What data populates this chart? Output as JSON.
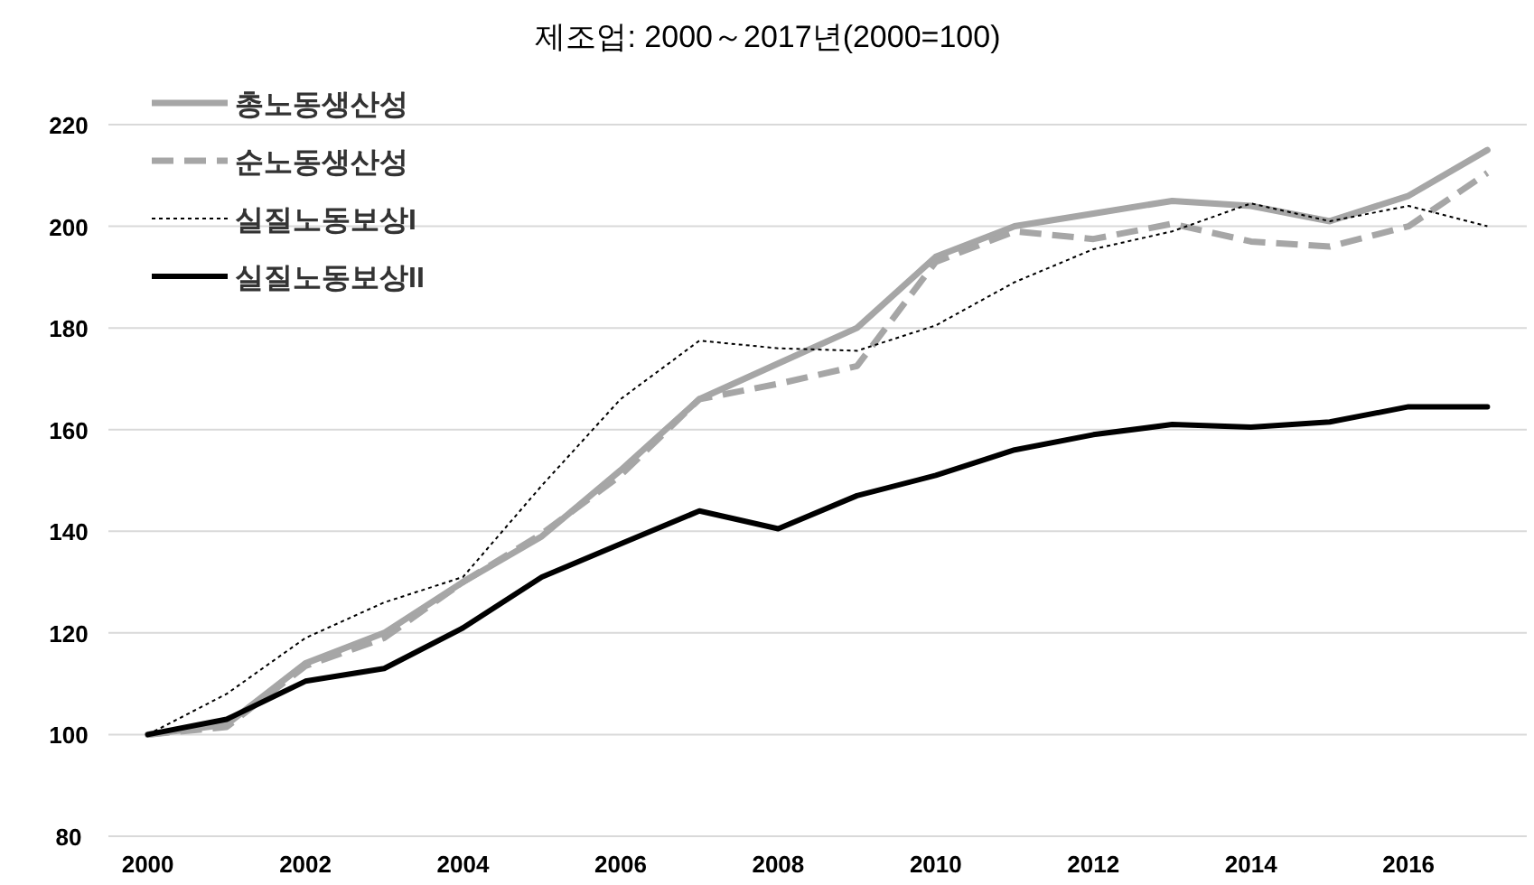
{
  "chart_data": {
    "type": "line",
    "title": "제조업: 2000～2017년(2000=100)",
    "categories": [
      "2000",
      null,
      "2002",
      null,
      "2004",
      null,
      "2006",
      null,
      "2008",
      null,
      "2010",
      null,
      "2012",
      null,
      "2014",
      null,
      "2016",
      null
    ],
    "series": [
      {
        "name": "총노동생산성",
        "color": "#a6a6a6",
        "line_style": "solid",
        "values": [
          100,
          102,
          114,
          120,
          130,
          139,
          152,
          166,
          173,
          180,
          194,
          200,
          202.5,
          205,
          204,
          201,
          206,
          215
        ]
      },
      {
        "name": "순노동생산성",
        "color": "#a6a6a6",
        "line_style": "dashed",
        "values": [
          100,
          101.5,
          113.5,
          119,
          130,
          139.5,
          151,
          166,
          169,
          172.5,
          193,
          199,
          197.5,
          200.5,
          197,
          196,
          200,
          210.5
        ]
      },
      {
        "name": "실질노동보상I",
        "color": "#000000",
        "line_style": "dotted",
        "values": [
          100,
          108,
          119,
          126,
          131,
          149,
          166,
          177.5,
          176,
          175.5,
          180.5,
          189,
          195.5,
          199,
          204.5,
          201,
          204,
          200
        ]
      },
      {
        "name": "실질노동보상II",
        "color": "#000000",
        "line_style": "solid",
        "values": [
          100,
          103,
          110.5,
          113,
          121,
          131,
          137.5,
          144,
          140.5,
          147,
          151,
          156,
          159,
          161,
          160.5,
          161.5,
          164.5,
          164.5
        ]
      }
    ],
    "ylim": [
      80,
      220
    ],
    "yticks": [
      80,
      100,
      120,
      140,
      160,
      180,
      200,
      220
    ],
    "grid": "y",
    "legend": "top left"
  }
}
